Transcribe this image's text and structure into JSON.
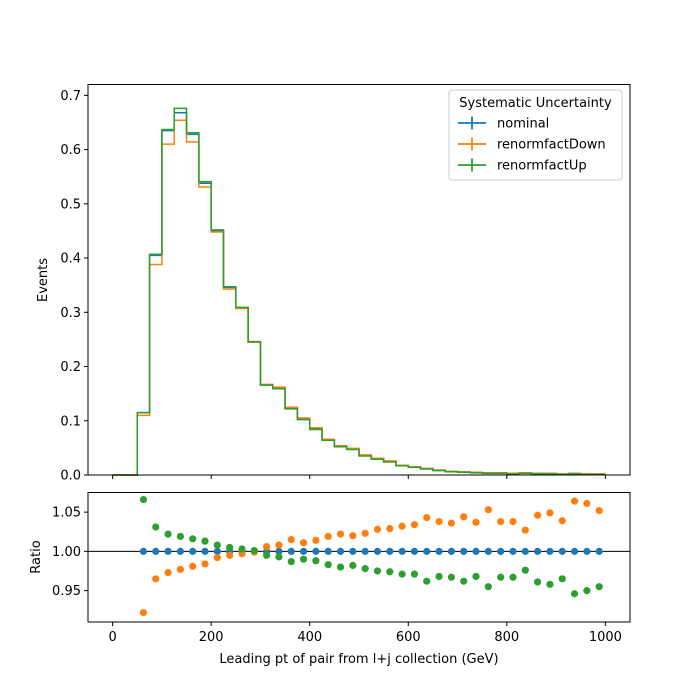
{
  "chart_data": {
    "type": "step",
    "xlabel": "Leading pt of pair from l+j collection (GeV)",
    "top": {
      "ylabel": "Events",
      "ylim": [
        0,
        0.72
      ],
      "xlim": [
        -50,
        1050
      ],
      "yticks": [
        "0.0",
        "0.1",
        "0.2",
        "0.3",
        "0.4",
        "0.5",
        "0.6",
        "0.7"
      ],
      "ytick_values": [
        0,
        0.1,
        0.2,
        0.3,
        0.4,
        0.5,
        0.6,
        0.7
      ]
    },
    "bottom": {
      "ylabel": "Ratio",
      "ylim": [
        0.91,
        1.075
      ],
      "yticks": [
        "0.95",
        "1.00",
        "1.05"
      ],
      "ytick_values": [
        0.95,
        1.0,
        1.05
      ],
      "reference_line": 1.0
    },
    "xticks": [
      "0",
      "200",
      "400",
      "600",
      "800",
      "1000"
    ],
    "xtick_values": [
      0,
      200,
      400,
      600,
      800,
      1000
    ],
    "legend": {
      "title": "Systematic Uncertainty",
      "position": "top-right"
    },
    "bin_edges": [
      0,
      25,
      50,
      75,
      100,
      125,
      150,
      175,
      200,
      225,
      250,
      275,
      300,
      325,
      350,
      375,
      400,
      425,
      450,
      475,
      500,
      525,
      550,
      575,
      600,
      625,
      650,
      675,
      700,
      725,
      750,
      775,
      800,
      825,
      850,
      875,
      900,
      925,
      950,
      975,
      1000
    ],
    "series": [
      {
        "name": "nominal",
        "color": "#1f77b4",
        "values": [
          0,
          0,
          0.115,
          0.405,
          0.635,
          0.668,
          0.628,
          0.538,
          0.45,
          0.346,
          0.308,
          0.245,
          0.166,
          0.16,
          0.123,
          0.103,
          0.085,
          0.065,
          0.053,
          0.048,
          0.036,
          0.03,
          0.025,
          0.018,
          0.015,
          0.012,
          0.009,
          0.007,
          0.006,
          0.005,
          0.004,
          0.004,
          0.003,
          0.004,
          0.003,
          0.003,
          0.002,
          0.003,
          0.002,
          0.002
        ],
        "ratio": [
          null,
          null,
          1.0,
          1.0,
          1.0,
          1.0,
          1.0,
          1.0,
          1.0,
          1.0,
          1.0,
          1.0,
          1.0,
          1.0,
          1.0,
          1.0,
          1.0,
          1.0,
          1.0,
          1.0,
          1.0,
          1.0,
          1.0,
          1.0,
          1.0,
          1.0,
          1.0,
          1.0,
          1.0,
          1.0,
          1.0,
          1.0,
          1.0,
          1.0,
          1.0,
          1.0,
          1.0,
          1.0,
          1.0,
          1.0
        ]
      },
      {
        "name": "renormfactDown",
        "color": "#ff7f0e",
        "values": [
          0,
          0,
          0.11,
          0.388,
          0.61,
          0.654,
          0.614,
          0.531,
          0.448,
          0.343,
          0.307,
          0.245,
          0.167,
          0.162,
          0.125,
          0.105,
          0.087,
          0.066,
          0.054,
          0.049,
          0.037,
          0.031,
          0.026,
          0.018,
          0.015,
          0.012,
          0.009,
          0.007,
          0.006,
          0.005,
          0.004,
          0.004,
          0.003,
          0.004,
          0.003,
          0.003,
          0.002,
          0.003,
          0.002,
          0.002
        ],
        "ratio": [
          null,
          null,
          0.922,
          0.965,
          0.973,
          0.977,
          0.981,
          0.984,
          0.992,
          0.995,
          0.997,
          0.999,
          1.006,
          1.008,
          1.015,
          1.011,
          1.014,
          1.019,
          1.022,
          1.02,
          1.023,
          1.028,
          1.029,
          1.032,
          1.034,
          1.043,
          1.038,
          1.036,
          1.044,
          1.037,
          1.053,
          1.038,
          1.038,
          1.027,
          1.046,
          1.049,
          1.039,
          1.064,
          1.061,
          1.052
        ]
      },
      {
        "name": "renormfactUp",
        "color": "#2ca02c",
        "values": [
          0,
          0,
          0.115,
          0.407,
          0.637,
          0.676,
          0.631,
          0.541,
          0.452,
          0.347,
          0.309,
          0.246,
          0.166,
          0.159,
          0.122,
          0.102,
          0.084,
          0.064,
          0.052,
          0.047,
          0.035,
          0.029,
          0.024,
          0.017,
          0.014,
          0.011,
          0.008,
          0.006,
          0.005,
          0.004,
          0.003,
          0.003,
          0.002,
          0.003,
          0.002,
          0.002,
          0.001,
          0.002,
          0.001,
          0.001
        ],
        "ratio": [
          null,
          null,
          1.066,
          1.031,
          1.022,
          1.019,
          1.016,
          1.013,
          1.008,
          1.005,
          1.003,
          1.001,
          0.995,
          0.993,
          0.987,
          0.99,
          0.988,
          0.983,
          0.98,
          0.982,
          0.978,
          0.975,
          0.974,
          0.971,
          0.971,
          0.962,
          0.968,
          0.967,
          0.962,
          0.968,
          0.955,
          0.967,
          0.967,
          0.976,
          0.961,
          0.958,
          0.965,
          0.946,
          0.95,
          0.955
        ]
      }
    ]
  }
}
